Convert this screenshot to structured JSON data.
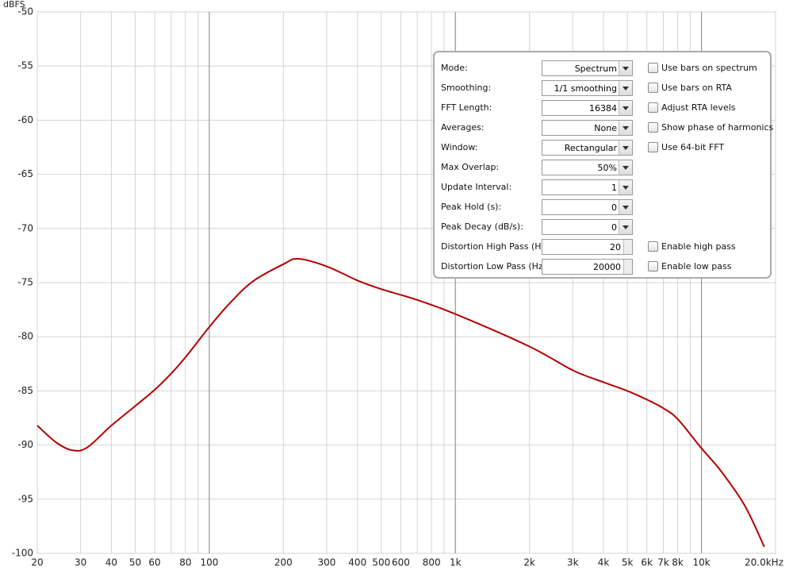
{
  "chart_data": {
    "type": "line",
    "ylabel": "dBFS",
    "x": [
      20,
      24,
      28,
      32,
      40,
      50,
      60,
      70,
      80,
      100,
      120,
      150,
      200,
      230,
      300,
      400,
      500,
      700,
      1000,
      2000,
      3000,
      4000,
      5000,
      6000,
      7000,
      8000,
      10000,
      12000,
      15000,
      18000
    ],
    "series": [
      {
        "color": "#b40000",
        "values": [
          -88.2,
          -89.8,
          -90.5,
          -90.2,
          -88.2,
          -86.4,
          -84.9,
          -83.4,
          -81.9,
          -79.1,
          -77.0,
          -74.9,
          -73.3,
          -72.8,
          -73.5,
          -74.8,
          -75.6,
          -76.6,
          -77.9,
          -80.9,
          -83.1,
          -84.2,
          -85.0,
          -85.8,
          -86.6,
          -87.6,
          -90.3,
          -92.4,
          -95.6,
          -99.4
        ]
      }
    ],
    "xscale": "log",
    "xlim": [
      20,
      20000
    ],
    "xticks": [
      20,
      30,
      40,
      50,
      60,
      80,
      100,
      200,
      300,
      400,
      500,
      600,
      800,
      {
        "value": 1000,
        "label": "1k"
      },
      {
        "value": 2000,
        "label": "2k"
      },
      {
        "value": 3000,
        "label": "3k"
      },
      {
        "value": 4000,
        "label": "4k"
      },
      {
        "value": 5000,
        "label": "5k"
      },
      {
        "value": 6000,
        "label": "6k"
      },
      {
        "value": 7000,
        "label": "7k"
      },
      {
        "value": 8000,
        "label": "8k"
      },
      {
        "value": 10000,
        "label": "10k"
      },
      {
        "value": 20000,
        "label": "20.0kHz"
      }
    ],
    "xminor_gridlines": [
      70,
      90,
      700,
      900,
      9000
    ],
    "xmajor_gridlines": [
      100,
      1000,
      10000
    ],
    "ylim": [
      -100,
      -50
    ],
    "yticks": [
      -50,
      -55,
      -60,
      -65,
      -70,
      -75,
      -80,
      -85,
      -90,
      -95,
      -100
    ],
    "grid": true
  },
  "panel": {
    "rows": [
      {
        "label": "Mode:",
        "value": "Spectrum",
        "control": "dropdown",
        "checkbox": "Use bars on spectrum"
      },
      {
        "label": "Smoothing:",
        "value": "1/1 smoothing",
        "control": "dropdown",
        "checkbox": "Use bars on RTA"
      },
      {
        "label": "FFT Length:",
        "value": "16384",
        "control": "dropdown",
        "checkbox": "Adjust RTA levels"
      },
      {
        "label": "Averages:",
        "value": "None",
        "control": "dropdown",
        "checkbox": "Show phase of harmonics"
      },
      {
        "label": "Window:",
        "value": "Rectangular",
        "control": "dropdown",
        "checkbox": "Use 64-bit FFT"
      },
      {
        "label": "Max Overlap:",
        "value": "50%",
        "control": "dropdown"
      },
      {
        "label": "Update Interval:",
        "value": "1",
        "control": "dropdown"
      },
      {
        "label": "Peak Hold (s):",
        "value": "0",
        "control": "dropdown"
      },
      {
        "label": "Peak Decay (dB/s):",
        "value": "0",
        "control": "dropdown"
      },
      {
        "label": "Distortion High Pass (Hz):",
        "value": "20",
        "control": "spinner",
        "checkbox": "Enable high pass"
      },
      {
        "label": "Distortion Low Pass (Hz):",
        "value": "20000",
        "control": "spinner",
        "checkbox": "Enable low pass"
      }
    ]
  }
}
